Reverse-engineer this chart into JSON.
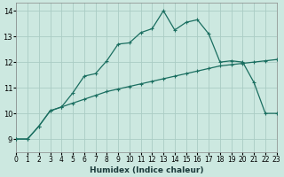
{
  "xlabel": "Humidex (Indice chaleur)",
  "background_color": "#cce8e0",
  "grid_color": "#aaccc4",
  "line_color": "#1a6e60",
  "x_line1": [
    0,
    1,
    2,
    3,
    4,
    5,
    6,
    7,
    8,
    9,
    10,
    11,
    12,
    13,
    14,
    15,
    16,
    17,
    18,
    19,
    20,
    21,
    22,
    23
  ],
  "y_line1": [
    9.0,
    9.0,
    9.5,
    10.1,
    10.25,
    10.4,
    10.55,
    10.7,
    10.85,
    10.95,
    11.05,
    11.15,
    11.25,
    11.35,
    11.45,
    11.55,
    11.65,
    11.75,
    11.85,
    11.9,
    11.95,
    12.0,
    12.05,
    12.1
  ],
  "x_line2": [
    0,
    1,
    2,
    3,
    4,
    5,
    6,
    7,
    8,
    9,
    10,
    11,
    12,
    13,
    14,
    15,
    16,
    17,
    18,
    19,
    20,
    21,
    22,
    23
  ],
  "y_line2": [
    9.0,
    9.0,
    9.5,
    10.1,
    10.25,
    10.8,
    11.45,
    11.55,
    12.05,
    12.7,
    12.75,
    13.15,
    13.3,
    14.0,
    13.25,
    13.55,
    13.65,
    13.1,
    12.0,
    12.05,
    12.0,
    11.2,
    10.0,
    10.0
  ],
  "ylim": [
    8.5,
    14.3
  ],
  "xlim": [
    0,
    23
  ],
  "yticks": [
    9,
    10,
    11,
    12,
    13,
    14
  ],
  "xticks": [
    0,
    1,
    2,
    3,
    4,
    5,
    6,
    7,
    8,
    9,
    10,
    11,
    12,
    13,
    14,
    15,
    16,
    17,
    18,
    19,
    20,
    21,
    22,
    23
  ],
  "xlabel_fontsize": 6.5,
  "tick_fontsize": 5.5,
  "ytick_fontsize": 6.0
}
